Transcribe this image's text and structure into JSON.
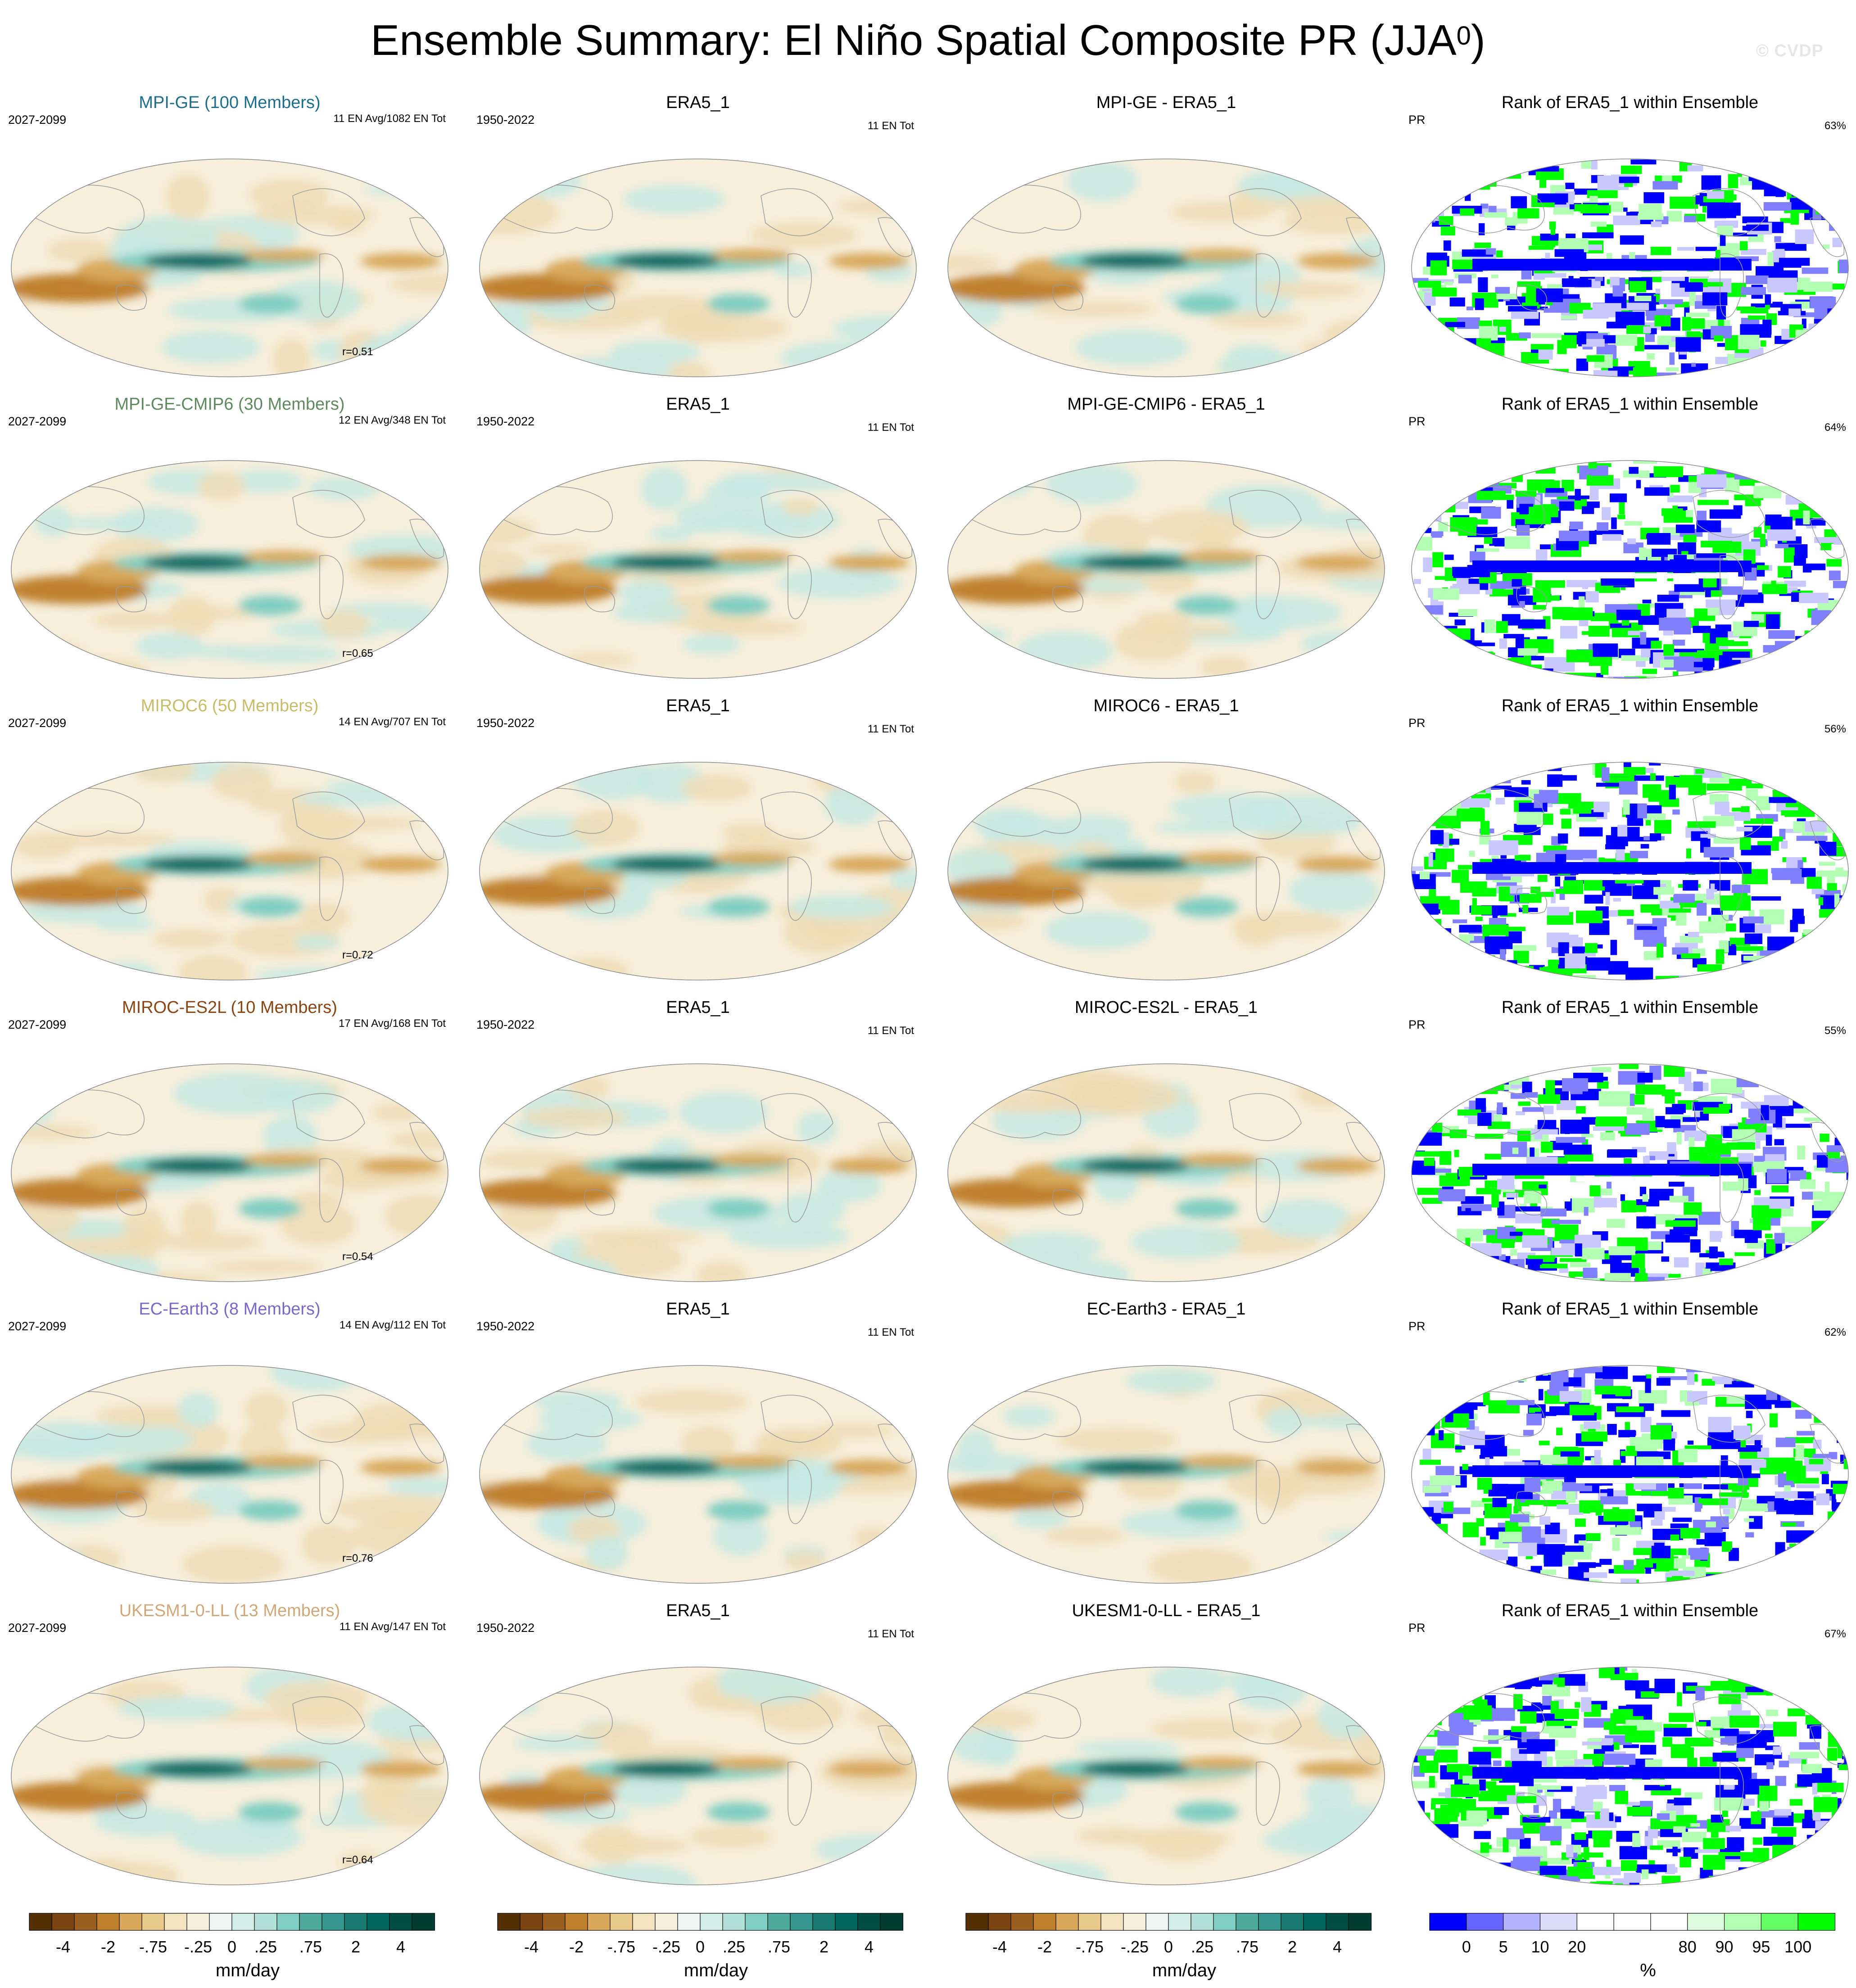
{
  "title_main": "Ensemble Summary: El Niño Spatial Composite PR (JJA",
  "title_sup": "0",
  "title_close": ")",
  "watermark": "© CVDP",
  "rows": [
    {
      "model": "MPI-GE (100 Members)",
      "model_color": "#1f6e8c",
      "period": "2027-2099",
      "events": "11 EN Avg/1082 EN Tot",
      "r": "r=0.51",
      "obs": "ERA5_1",
      "obs_period": "1950-2022",
      "obs_events": "11 EN Tot",
      "diff": "MPI-GE - ERA5_1",
      "rank_title": "Rank of ERA5_1 within Ensemble",
      "rank_var": "PR",
      "rank_pct": "63%"
    },
    {
      "model": "MPI-GE-CMIP6 (30 Members)",
      "model_color": "#5f8a5f",
      "period": "2027-2099",
      "events": "12 EN Avg/348 EN Tot",
      "r": "r=0.65",
      "obs": "ERA5_1",
      "obs_period": "1950-2022",
      "obs_events": "11 EN Tot",
      "diff": "MPI-GE-CMIP6 - ERA5_1",
      "rank_title": "Rank of ERA5_1 within Ensemble",
      "rank_var": "PR",
      "rank_pct": "64%"
    },
    {
      "model": "MIROC6 (50 Members)",
      "model_color": "#c8bb6a",
      "period": "2027-2099",
      "events": "14 EN Avg/707 EN Tot",
      "r": "r=0.72",
      "obs": "ERA5_1",
      "obs_period": "1950-2022",
      "obs_events": "11 EN Tot",
      "diff": "MIROC6 - ERA5_1",
      "rank_title": "Rank of ERA5_1 within Ensemble",
      "rank_var": "PR",
      "rank_pct": "56%"
    },
    {
      "model": "MIROC-ES2L (10 Members)",
      "model_color": "#8b4513",
      "period": "2027-2099",
      "events": "17 EN Avg/168 EN Tot",
      "r": "r=0.54",
      "obs": "ERA5_1",
      "obs_period": "1950-2022",
      "obs_events": "11 EN Tot",
      "diff": "MIROC-ES2L - ERA5_1",
      "rank_title": "Rank of ERA5_1 within Ensemble",
      "rank_var": "PR",
      "rank_pct": "55%"
    },
    {
      "model": "EC-Earth3 (8 Members)",
      "model_color": "#7b68c8",
      "period": "2027-2099",
      "events": "14 EN Avg/112 EN Tot",
      "r": "r=0.76",
      "obs": "ERA5_1",
      "obs_period": "1950-2022",
      "obs_events": "11 EN Tot",
      "diff": "EC-Earth3 - ERA5_1",
      "rank_title": "Rank of ERA5_1 within Ensemble",
      "rank_var": "PR",
      "rank_pct": "62%"
    },
    {
      "model": "UKESM1-0-LL (13 Members)",
      "model_color": "#d2a679",
      "period": "2027-2099",
      "events": "11 EN Avg/147 EN Tot",
      "r": "r=0.64",
      "obs": "ERA5_1",
      "obs_period": "1950-2022",
      "obs_events": "11 EN Tot",
      "diff": "UKESM1-0-LL - ERA5_1",
      "rank_title": "Rank of ERA5_1 within Ensemble",
      "rank_var": "PR",
      "rank_pct": "67%"
    }
  ],
  "chart_data": {
    "type": "heatmap",
    "projection": "robinson (pacific-centered)",
    "pr_colorbar": {
      "unit": "mm/day",
      "colors": [
        "#543005",
        "#7a4510",
        "#9b6020",
        "#bf812d",
        "#d7a85a",
        "#e8c98c",
        "#f3e3be",
        "#f7efdc",
        "#eef6f4",
        "#d3ede9",
        "#b2e0d8",
        "#80cdc1",
        "#4fa89c",
        "#35978f",
        "#1b7a72",
        "#01665e",
        "#004d45",
        "#003c30"
      ],
      "tick_labels": [
        "-4",
        "-2",
        "-.75",
        "-.25",
        "0",
        ".25",
        ".75",
        "2",
        "4"
      ],
      "tick_positions": [
        1.5,
        3.5,
        5.5,
        7.5,
        9,
        10.5,
        12.5,
        14.5,
        16.5
      ]
    },
    "rank_colorbar": {
      "unit": "%",
      "colors": [
        "#0000ff",
        "#6666ff",
        "#b3b3ff",
        "#dcdcfa",
        "#ffffff",
        "#ffffff",
        "#ffffff",
        "#dcfadc",
        "#b3ffb3",
        "#66ff66",
        "#00ff00"
      ],
      "tick_labels": [
        "0",
        "5",
        "10",
        "20",
        "80",
        "90",
        "95",
        "100"
      ],
      "tick_positions": [
        1,
        2,
        3,
        4,
        7,
        8,
        9,
        10
      ]
    }
  }
}
